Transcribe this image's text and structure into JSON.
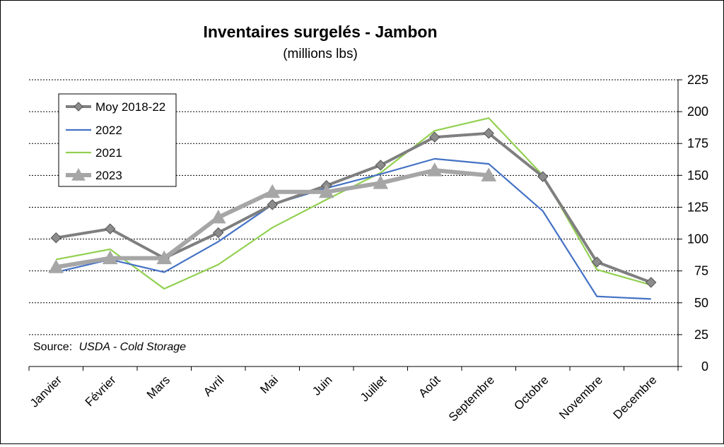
{
  "chart_data": {
    "type": "line",
    "title": "Inventaires surgelés - Jambon",
    "subtitle": "(millions lbs)",
    "categories": [
      "Janvier",
      "Février",
      "Mars",
      "Avril",
      "Mai",
      "Juin",
      "Juillet",
      "Août",
      "Septembre",
      "Octobre",
      "Novembre",
      "Decembre"
    ],
    "y_axis": {
      "position": "right",
      "ylim": [
        0,
        225
      ],
      "ticks": [
        0,
        25,
        50,
        75,
        100,
        125,
        150,
        175,
        200,
        225
      ]
    },
    "grid": "horizontal dashed",
    "legend_position": "top-left",
    "series": [
      {
        "name": "Moy 2018-22",
        "color": "#7f7f7f",
        "marker": "diamond",
        "values": [
          101,
          108,
          85,
          105,
          127,
          142,
          158,
          180,
          183,
          149,
          82,
          66
        ]
      },
      {
        "name": "2022",
        "color": "#4472c4",
        "marker": "none",
        "values": [
          74,
          84,
          74,
          98,
          127,
          140,
          151,
          163,
          159,
          122,
          55,
          53
        ]
      },
      {
        "name": "2021",
        "color": "#92d050",
        "marker": "none",
        "values": [
          84,
          92,
          61,
          80,
          109,
          131,
          152,
          185,
          195,
          150,
          76,
          64
        ]
      },
      {
        "name": "2023",
        "color": "#a6a6a6",
        "marker": "triangle",
        "values": [
          78,
          85,
          85,
          117,
          137,
          137,
          144,
          154,
          150,
          null,
          null,
          null
        ]
      }
    ],
    "source": {
      "label": "Source:",
      "text": "USDA - Cold Storage"
    }
  }
}
